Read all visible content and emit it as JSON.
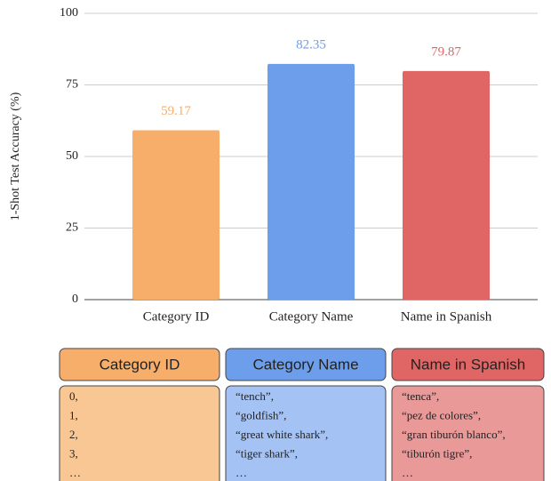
{
  "chart_data": {
    "type": "bar",
    "ylabel": "1-Shot Test Accuracy (%)",
    "categories": [
      "Category ID",
      "Category Name",
      "Name in Spanish"
    ],
    "values": [
      59.17,
      82.35,
      79.87
    ],
    "colors": [
      "#f6ae6a",
      "#6d9eeb",
      "#e06666"
    ],
    "ylim": [
      0,
      100
    ],
    "yticks": [
      0,
      25,
      50,
      75,
      100
    ],
    "grid": true
  },
  "panels": [
    {
      "title": "Category ID",
      "header_color": "#f6ae6a",
      "body_color": "#f9c794",
      "items": [
        "0,",
        "1,",
        "2,",
        "3,",
        "…"
      ]
    },
    {
      "title": "Category Name",
      "header_color": "#6d9eeb",
      "body_color": "#a4c2f4",
      "items": [
        "“tench”,",
        "“goldfish”,",
        "“great white shark”,",
        "“tiger shark”,",
        "…"
      ]
    },
    {
      "title": "Name in Spanish",
      "header_color": "#e06666",
      "body_color": "#ea9999",
      "items": [
        "“tenca”,",
        "“pez de colores”,",
        "“gran tiburón blanco”,",
        "“tiburón tigre”,",
        "…"
      ]
    }
  ]
}
